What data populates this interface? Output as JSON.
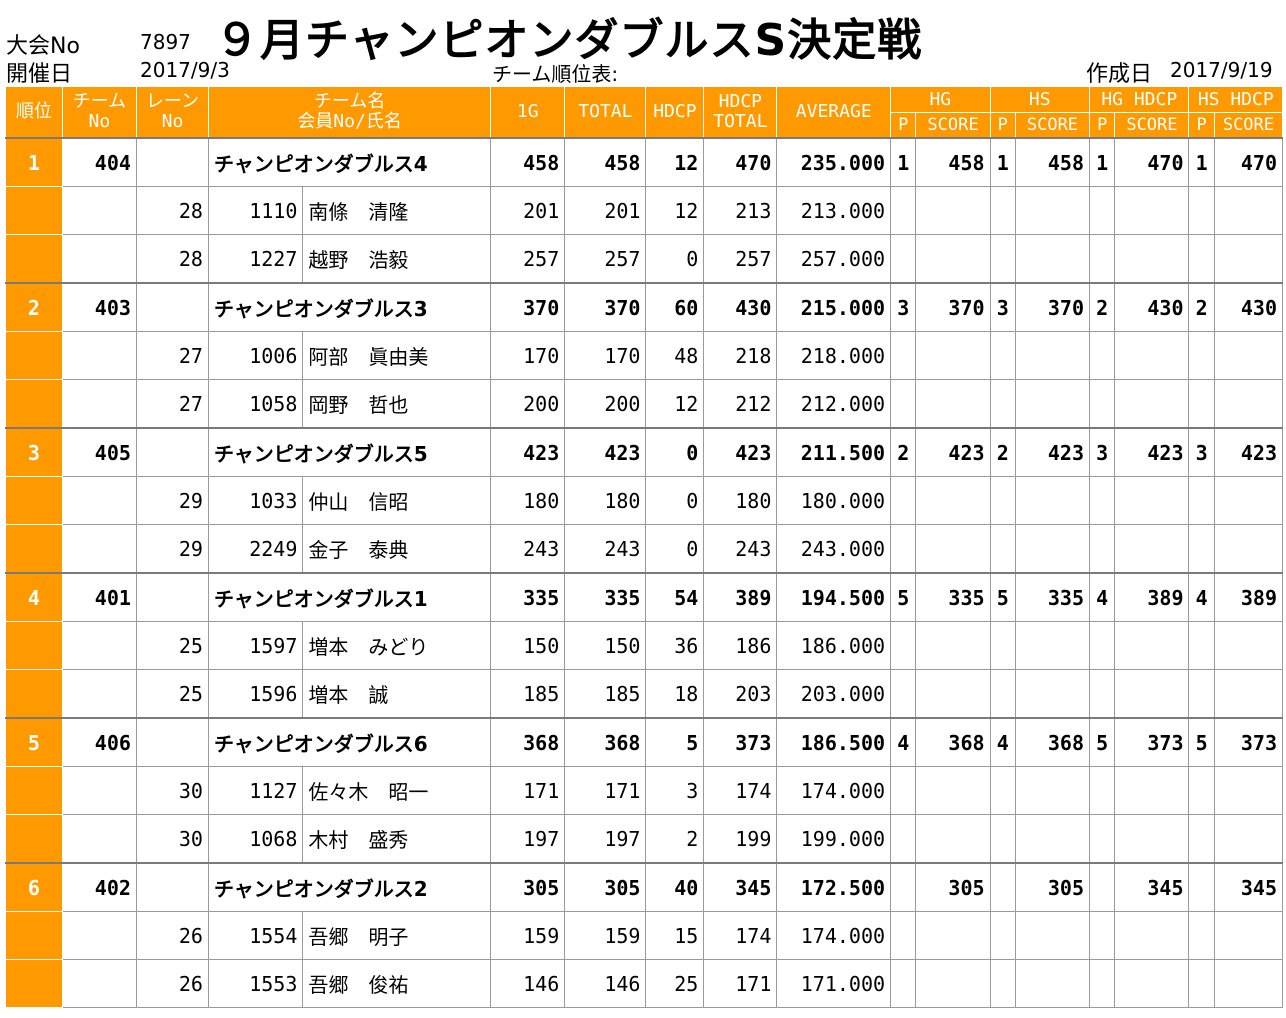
{
  "meta": {
    "tournament_no_label": "大会No",
    "tournament_no": "7897",
    "held_date_label": "開催日",
    "held_date": "2017/9/3",
    "title": "９月チャンピオンダブルスS決定戦",
    "subtitle": "チーム順位表:",
    "created_label": "作成日",
    "created_date": "2017/9/19"
  },
  "headers": {
    "rank": "順位",
    "team_no_1": "チーム",
    "team_no_2": "No",
    "lane_no_1": "レーン",
    "lane_no_2": "No",
    "team_name_1": "チーム名",
    "team_name_2": "会員No/氏名",
    "g1": "1G",
    "total": "TOTAL",
    "hdcp": "HDCP",
    "hdcp_total_1": "HDCP",
    "hdcp_total_2": "TOTAL",
    "average": "AVERAGE",
    "hg": "HG",
    "hs": "HS",
    "hg_hdcp": "HG HDCP",
    "hs_hdcp": "HS HDCP",
    "p": "P",
    "score": "SCORE"
  },
  "teams": [
    {
      "rank": "1",
      "team_no": "404",
      "name": "チャンピオンダブルス4",
      "g1": "458",
      "total": "458",
      "hdcp": "12",
      "hdcp_total": "470",
      "average": "235.000",
      "hg_p": "1",
      "hg_score": "458",
      "hs_p": "1",
      "hs_score": "458",
      "hgh_p": "1",
      "hgh_score": "470",
      "hsh_p": "1",
      "hsh_score": "470",
      "members": [
        {
          "lane": "28",
          "member_no": "1110",
          "name": "南條　清隆",
          "g1": "201",
          "total": "201",
          "hdcp": "12",
          "hdcp_total": "213",
          "average": "213.000"
        },
        {
          "lane": "28",
          "member_no": "1227",
          "name": "越野　浩毅",
          "g1": "257",
          "total": "257",
          "hdcp": "0",
          "hdcp_total": "257",
          "average": "257.000"
        }
      ]
    },
    {
      "rank": "2",
      "team_no": "403",
      "name": "チャンピオンダブルス3",
      "g1": "370",
      "total": "370",
      "hdcp": "60",
      "hdcp_total": "430",
      "average": "215.000",
      "hg_p": "3",
      "hg_score": "370",
      "hs_p": "3",
      "hs_score": "370",
      "hgh_p": "2",
      "hgh_score": "430",
      "hsh_p": "2",
      "hsh_score": "430",
      "members": [
        {
          "lane": "27",
          "member_no": "1006",
          "name": "阿部　眞由美",
          "g1": "170",
          "total": "170",
          "hdcp": "48",
          "hdcp_total": "218",
          "average": "218.000"
        },
        {
          "lane": "27",
          "member_no": "1058",
          "name": "岡野　哲也",
          "g1": "200",
          "total": "200",
          "hdcp": "12",
          "hdcp_total": "212",
          "average": "212.000"
        }
      ]
    },
    {
      "rank": "3",
      "team_no": "405",
      "name": "チャンピオンダブルス5",
      "g1": "423",
      "total": "423",
      "hdcp": "0",
      "hdcp_total": "423",
      "average": "211.500",
      "hg_p": "2",
      "hg_score": "423",
      "hs_p": "2",
      "hs_score": "423",
      "hgh_p": "3",
      "hgh_score": "423",
      "hsh_p": "3",
      "hsh_score": "423",
      "members": [
        {
          "lane": "29",
          "member_no": "1033",
          "name": "仲山　信昭",
          "g1": "180",
          "total": "180",
          "hdcp": "0",
          "hdcp_total": "180",
          "average": "180.000"
        },
        {
          "lane": "29",
          "member_no": "2249",
          "name": "金子　泰典",
          "g1": "243",
          "total": "243",
          "hdcp": "0",
          "hdcp_total": "243",
          "average": "243.000"
        }
      ]
    },
    {
      "rank": "4",
      "team_no": "401",
      "name": "チャンピオンダブルス1",
      "g1": "335",
      "total": "335",
      "hdcp": "54",
      "hdcp_total": "389",
      "average": "194.500",
      "hg_p": "5",
      "hg_score": "335",
      "hs_p": "5",
      "hs_score": "335",
      "hgh_p": "4",
      "hgh_score": "389",
      "hsh_p": "4",
      "hsh_score": "389",
      "members": [
        {
          "lane": "25",
          "member_no": "1597",
          "name": "増本　みどり",
          "g1": "150",
          "total": "150",
          "hdcp": "36",
          "hdcp_total": "186",
          "average": "186.000"
        },
        {
          "lane": "25",
          "member_no": "1596",
          "name": "増本　誠",
          "g1": "185",
          "total": "185",
          "hdcp": "18",
          "hdcp_total": "203",
          "average": "203.000"
        }
      ]
    },
    {
      "rank": "5",
      "team_no": "406",
      "name": "チャンピオンダブルス6",
      "g1": "368",
      "total": "368",
      "hdcp": "5",
      "hdcp_total": "373",
      "average": "186.500",
      "hg_p": "4",
      "hg_score": "368",
      "hs_p": "4",
      "hs_score": "368",
      "hgh_p": "5",
      "hgh_score": "373",
      "hsh_p": "5",
      "hsh_score": "373",
      "members": [
        {
          "lane": "30",
          "member_no": "1127",
          "name": "佐々木　昭一",
          "g1": "171",
          "total": "171",
          "hdcp": "3",
          "hdcp_total": "174",
          "average": "174.000"
        },
        {
          "lane": "30",
          "member_no": "1068",
          "name": "木村　盛秀",
          "g1": "197",
          "total": "197",
          "hdcp": "2",
          "hdcp_total": "199",
          "average": "199.000"
        }
      ]
    },
    {
      "rank": "6",
      "team_no": "402",
      "name": "チャンピオンダブルス2",
      "g1": "305",
      "total": "305",
      "hdcp": "40",
      "hdcp_total": "345",
      "average": "172.500",
      "hg_p": "",
      "hg_score": "305",
      "hs_p": "",
      "hs_score": "305",
      "hgh_p": "",
      "hgh_score": "345",
      "hsh_p": "",
      "hsh_score": "345",
      "members": [
        {
          "lane": "26",
          "member_no": "1554",
          "name": "吾郷　明子",
          "g1": "159",
          "total": "159",
          "hdcp": "15",
          "hdcp_total": "174",
          "average": "174.000"
        },
        {
          "lane": "26",
          "member_no": "1553",
          "name": "吾郷　俊祐",
          "g1": "146",
          "total": "146",
          "hdcp": "25",
          "hdcp_total": "171",
          "average": "171.000"
        }
      ]
    }
  ]
}
